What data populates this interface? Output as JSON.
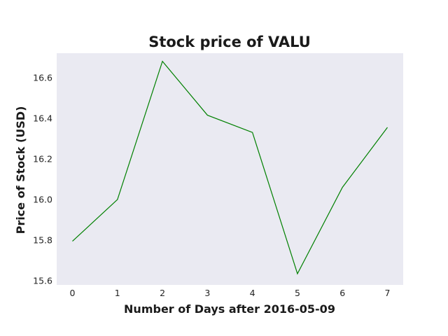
{
  "chart_data": {
    "type": "line",
    "title": "Stock price of VALU",
    "xlabel": "Number of Days after 2016-05-09",
    "ylabel": "Price of Stock (USD)",
    "x": [
      0,
      1,
      2,
      3,
      4,
      5,
      6,
      7
    ],
    "series": [
      {
        "values": [
          15.795,
          16.0,
          16.68,
          16.415,
          16.33,
          15.635,
          16.06,
          16.355
        ],
        "color": "#008000"
      }
    ],
    "xlim": [
      -0.35,
      7.35
    ],
    "ylim": [
      15.58,
      16.72
    ],
    "xticks": [
      "0",
      "1",
      "2",
      "3",
      "4",
      "5",
      "6",
      "7"
    ],
    "yticks": [
      "15.6",
      "15.8",
      "16.0",
      "16.2",
      "16.4",
      "16.6"
    ],
    "grid": false,
    "plot_background": "#eaeaf2"
  }
}
